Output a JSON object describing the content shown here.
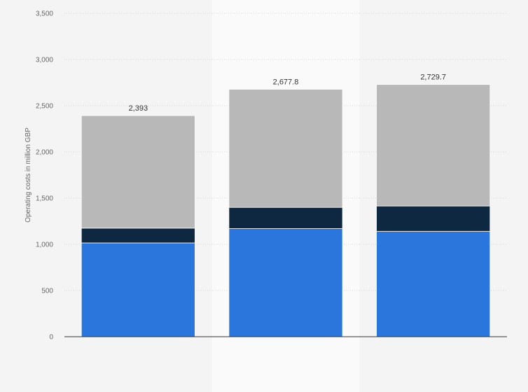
{
  "chart_data": {
    "type": "bar",
    "stacked": true,
    "title": "",
    "xlabel": "",
    "ylabel": "Operating costs in million GBP",
    "ylim": [
      0,
      3500
    ],
    "yticks": [
      0,
      500,
      1000,
      1500,
      2000,
      2500,
      3000,
      3500
    ],
    "ytick_labels": [
      "0",
      "500",
      "1,000",
      "1,500",
      "2,000",
      "2,500",
      "3,000",
      "3,500"
    ],
    "categories": [
      "",
      "",
      ""
    ],
    "grid": true,
    "legend": "none",
    "series": [
      {
        "color": "#2a76dd",
        "values": [
          1015,
          1170,
          1140
        ]
      },
      {
        "color": "#0e2841",
        "values": [
          160,
          230,
          275
        ]
      },
      {
        "color": "#b8b8b8",
        "values": [
          1218,
          1277.8,
          1314.7
        ]
      }
    ],
    "totals": [
      2393,
      2677.8,
      2729.7
    ],
    "total_labels": [
      "2,393",
      "2,677.8",
      "2,729.7"
    ],
    "highlighted_category_index": 1,
    "highlight_color": "#fafafa"
  }
}
